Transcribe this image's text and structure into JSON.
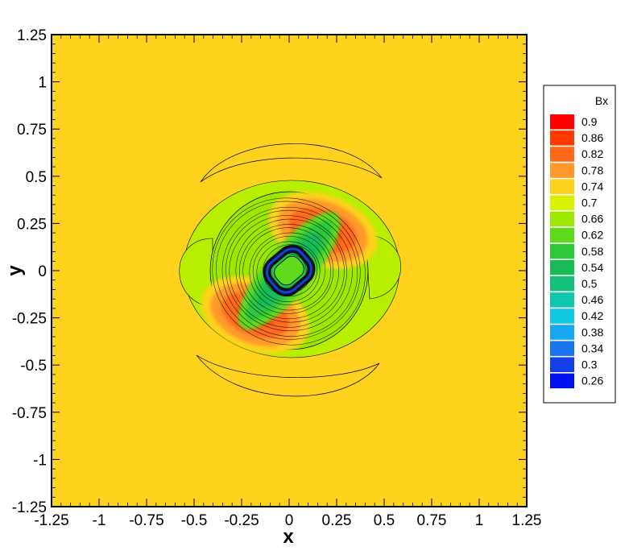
{
  "chart_data": {
    "type": "heatmap",
    "subtype": "contour",
    "title": "",
    "xlabel": "x",
    "ylabel": "y",
    "xlim": [
      -1.25,
      1.25
    ],
    "ylim": [
      -1.25,
      1.25
    ],
    "x_ticks": [
      -1.25,
      -1,
      -0.75,
      -0.5,
      -0.25,
      0,
      0.25,
      0.5,
      0.75,
      1,
      1.25
    ],
    "x_tick_labels": [
      "-1.25",
      "-1",
      "-0.75",
      "-0.5",
      "-0.25",
      "0",
      "0.25",
      "0.5",
      "0.75",
      "1",
      "1.25"
    ],
    "y_ticks": [
      1.25,
      1,
      0.75,
      0.5,
      0.25,
      0,
      -0.25,
      -0.5,
      -0.75,
      -1,
      -1.25
    ],
    "y_tick_labels": [
      "1.25",
      "1",
      "0.75",
      "0.5",
      "0.25",
      "0",
      "-0.25",
      "-0.5",
      "-0.75",
      "-1",
      "-1.25"
    ],
    "grid": false,
    "background_value": 0.72,
    "colorbar": {
      "title": "Bx",
      "placement": "right",
      "levels": [
        0.9,
        0.86,
        0.82,
        0.78,
        0.74,
        0.7,
        0.66,
        0.62,
        0.58,
        0.54,
        0.5,
        0.46,
        0.42,
        0.38,
        0.34,
        0.3,
        0.26
      ],
      "level_labels": [
        "0.9",
        "0.86",
        "0.82",
        "0.78",
        "0.74",
        "0.7",
        "0.66",
        "0.62",
        "0.58",
        "0.54",
        "0.5",
        "0.46",
        "0.42",
        "0.38",
        "0.34",
        "0.3",
        "0.26"
      ],
      "colors": [
        "#ff0000",
        "#ff3a00",
        "#ff6a1a",
        "#ff9a2a",
        "#ffd21e",
        "#d9f200",
        "#9ee800",
        "#5fda1a",
        "#2ec83c",
        "#17bc57",
        "#14bf7a",
        "#10c7ae",
        "#10cbe0",
        "#16a8f2",
        "#1a74ee",
        "#1240e6",
        "#0010ee"
      ]
    },
    "features": [
      {
        "name": "upper arc",
        "center": [
          -0.02,
          0.5
        ],
        "value": 0.74
      },
      {
        "name": "lower arc",
        "center": [
          0.0,
          -0.55
        ],
        "value": 0.74
      },
      {
        "name": "upper-right maximum",
        "center": [
          0.22,
          0.27
        ],
        "value": 0.82
      },
      {
        "name": "lower-left maximum",
        "center": [
          -0.22,
          -0.27
        ],
        "value": 0.82
      },
      {
        "name": "central minimum",
        "center": [
          0.0,
          0.0
        ],
        "value": 0.26
      }
    ]
  }
}
